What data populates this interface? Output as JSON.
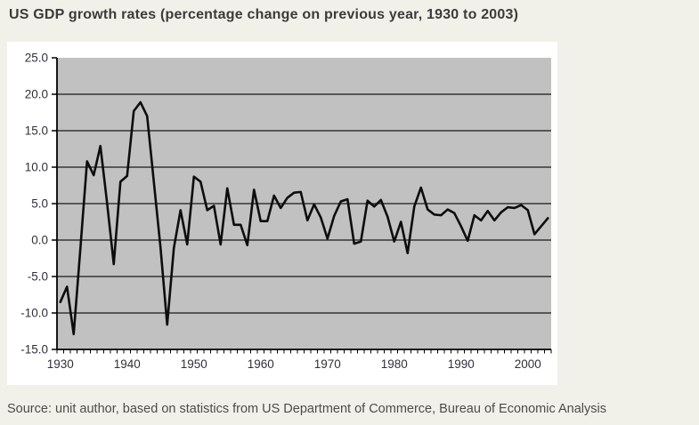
{
  "title": "US GDP growth rates (percentage change on previous year, 1930 to 2003)",
  "source": "Source: unit author, based on statistics from US Department of Commerce, Bureau of Economic Analysis",
  "colors": {
    "page_bg": "#f2f1e9",
    "panel_bg": "#ffffff",
    "plot_bg": "#c1c1c1",
    "gridline": "#1a1a1a",
    "axis": "#000000",
    "series_line": "#0d0d0d",
    "axis_text": "#30303a",
    "title_text": "#3b3b3b",
    "source_text": "#4b4b4b"
  },
  "chart_data": {
    "type": "line",
    "title": "US GDP growth rates (percentage change on previous year, 1930 to 2003)",
    "xlabel": "",
    "ylabel": "",
    "ylim": [
      -15,
      25
    ],
    "grid": true,
    "legend": false,
    "plot_background": "gray",
    "y_ticks": [
      {
        "v": 25,
        "label": "25.0"
      },
      {
        "v": 20,
        "label": "20.0"
      },
      {
        "v": 15,
        "label": "15.0"
      },
      {
        "v": 10,
        "label": "10.0"
      },
      {
        "v": 5,
        "label": "5.0"
      },
      {
        "v": 0,
        "label": "0.0"
      },
      {
        "v": -5,
        "label": "-5.0"
      },
      {
        "v": -10,
        "label": "-10.0"
      },
      {
        "v": -15,
        "label": "-15.0"
      }
    ],
    "x_ticks": [
      {
        "year": 1930,
        "label": "1930"
      },
      {
        "year": 1940,
        "label": "1940"
      },
      {
        "year": 1950,
        "label": "1950"
      },
      {
        "year": 1960,
        "label": "1960"
      },
      {
        "year": 1970,
        "label": "1970"
      },
      {
        "year": 1980,
        "label": "1980"
      },
      {
        "year": 1990,
        "label": "1990"
      },
      {
        "year": 2000,
        "label": "2000"
      }
    ],
    "x_start_year": 1930,
    "x_end_year": 2003,
    "series": [
      {
        "name": "US GDP growth rate (% change on previous year)",
        "values": [
          -8.5,
          -6.4,
          -12.9,
          -1.2,
          10.8,
          8.9,
          12.9,
          5.1,
          -3.3,
          8.0,
          8.8,
          17.7,
          18.9,
          17.0,
          8.0,
          -1.0,
          -11.6,
          -1.1,
          4.1,
          -0.6,
          8.7,
          8.0,
          4.1,
          4.7,
          -0.6,
          7.1,
          2.1,
          2.1,
          -0.7,
          6.9,
          2.6,
          2.6,
          6.1,
          4.4,
          5.8,
          6.5,
          6.6,
          2.7,
          4.9,
          3.1,
          0.2,
          3.3,
          5.3,
          5.6,
          -0.5,
          -0.2,
          5.4,
          4.6,
          5.5,
          3.2,
          -0.2,
          2.5,
          -1.8,
          4.6,
          7.2,
          4.2,
          3.5,
          3.4,
          4.2,
          3.7,
          1.9,
          -0.1,
          3.4,
          2.7,
          4.0,
          2.7,
          3.8,
          4.5,
          4.4,
          4.8,
          4.1,
          0.8,
          1.9,
          3.0
        ]
      }
    ]
  }
}
